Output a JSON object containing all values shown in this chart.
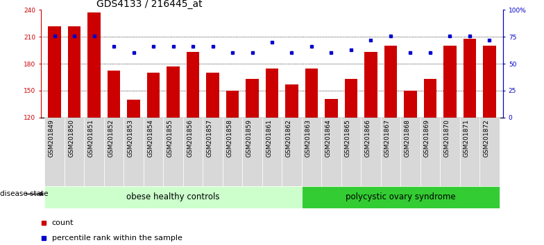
{
  "title": "GDS4133 / 216445_at",
  "samples": [
    "GSM201849",
    "GSM201850",
    "GSM201851",
    "GSM201852",
    "GSM201853",
    "GSM201854",
    "GSM201855",
    "GSM201856",
    "GSM201857",
    "GSM201858",
    "GSM201859",
    "GSM201861",
    "GSM201862",
    "GSM201863",
    "GSM201864",
    "GSM201865",
    "GSM201866",
    "GSM201867",
    "GSM201868",
    "GSM201869",
    "GSM201870",
    "GSM201871",
    "GSM201872"
  ],
  "counts": [
    222,
    222,
    237,
    172,
    140,
    170,
    177,
    193,
    170,
    150,
    163,
    175,
    157,
    175,
    141,
    163,
    193,
    200,
    150,
    163,
    200,
    208,
    200
  ],
  "percentile": [
    76,
    76,
    76,
    66,
    60,
    66,
    66,
    66,
    66,
    60,
    60,
    70,
    60,
    66,
    60,
    63,
    72,
    76,
    60,
    60,
    76,
    76,
    72
  ],
  "ylim_left": [
    120,
    240
  ],
  "ylim_right": [
    0,
    100
  ],
  "yticks_left": [
    120,
    150,
    180,
    210,
    240
  ],
  "yticks_right": [
    0,
    25,
    50,
    75,
    100
  ],
  "ytick_right_labels": [
    "0",
    "25",
    "50",
    "75",
    "100%"
  ],
  "group1_label": "obese healthy controls",
  "group2_label": "polycystic ovary syndrome",
  "group1_count": 13,
  "group2_count": 10,
  "bar_color": "#cc0000",
  "dot_color": "#0000cc",
  "group1_bg": "#ccffcc",
  "group2_bg": "#33cc33",
  "tick_bg": "#d8d8d8",
  "legend_count_label": "count",
  "legend_pct_label": "percentile rank within the sample",
  "disease_state_label": "disease state",
  "title_fontsize": 10,
  "tick_fontsize": 6.5,
  "group_fontsize": 8.5
}
